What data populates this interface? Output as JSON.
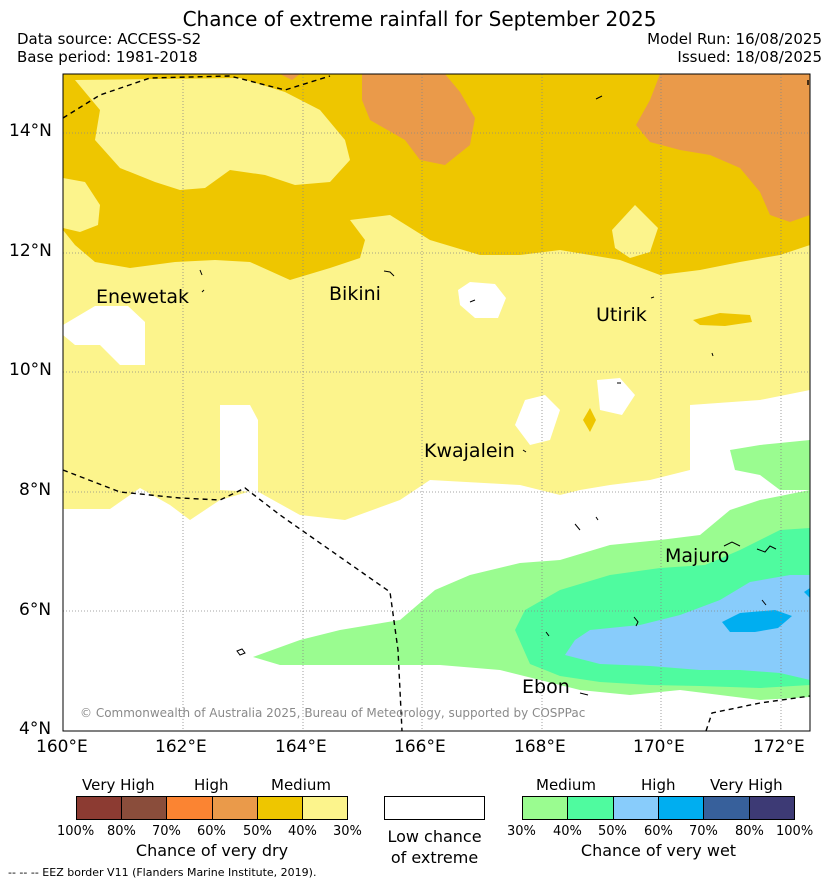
{
  "header": {
    "title": "Chance of extreme rainfall for September 2025",
    "data_source": "Data source: ACCESS-S2",
    "base_period": "Base period: 1981-2018",
    "model_run": "Model Run: 16/08/2025",
    "issued": "Issued: 18/08/2025"
  },
  "map": {
    "lat_labels": [
      "14°N",
      "12°N",
      "10°N",
      "8°N",
      "6°N",
      "4°N"
    ],
    "lon_labels": [
      "160°E",
      "162°E",
      "164°E",
      "166°E",
      "168°E",
      "170°E",
      "172°E"
    ],
    "places": [
      "Enewetak",
      "Bikini",
      "Utirik",
      "Kwajalein",
      "Majuro",
      "Ebon"
    ],
    "copyright": "© Commonwealth of Australia 2025, Bureau of Meteorology, supported by COSPPac"
  },
  "legend": {
    "dry": {
      "headers": [
        "Very High",
        "High",
        "Medium"
      ],
      "ticks": [
        "100%",
        "80%",
        "70%",
        "60%",
        "50%",
        "40%",
        "30%"
      ],
      "colors": [
        "#8c3b32",
        "#8a4d3b",
        "#fb8432",
        "#ea9a4a",
        "#eec600",
        "#fcf48c"
      ],
      "caption": "Chance of very dry"
    },
    "neutral": {
      "caption_line1": "Low chance",
      "caption_line2": "of extreme",
      "color": "#ffffff"
    },
    "wet": {
      "headers": [
        "Medium",
        "High",
        "Very High"
      ],
      "ticks": [
        "30%",
        "40%",
        "50%",
        "60%",
        "70%",
        "80%",
        "100%"
      ],
      "colors": [
        "#9afc90",
        "#4ffb9f",
        "#88ccfb",
        "#00aef0",
        "#37609b",
        "#3d3a75"
      ],
      "caption": "Chance of very wet"
    }
  },
  "footnote": "-- -- -- EEZ border V11 (Flanders Marine Institute, 2019)."
}
